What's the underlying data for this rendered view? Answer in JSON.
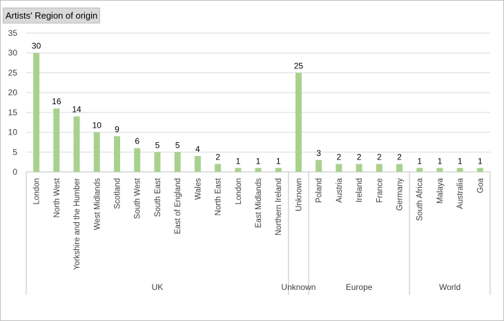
{
  "chart_data": {
    "type": "bar",
    "title": "Artists' Region of origin",
    "xlabel": "",
    "ylabel": "",
    "ylim": [
      0,
      35
    ],
    "yticks": [
      0,
      5,
      10,
      15,
      20,
      25,
      30,
      35
    ],
    "grid": true,
    "legend": "none",
    "color": "#a9d18e",
    "categories": [
      "London",
      "North West",
      "Yorkshire and the Humber",
      "West Midlands",
      "Scotland",
      "South West",
      "South East",
      "East of England",
      "Wales",
      "North East",
      "London",
      "East Midlands",
      "Northern Ireland",
      "Unknown",
      "Poland",
      "Austria",
      "Ireland",
      "France",
      "Germany",
      "South Africa",
      "Malaya",
      "Australia",
      "Goa"
    ],
    "values": [
      30,
      16,
      14,
      10,
      9,
      6,
      5,
      5,
      4,
      2,
      1,
      1,
      1,
      25,
      3,
      2,
      2,
      2,
      2,
      1,
      1,
      1,
      1
    ],
    "groups": [
      {
        "name": "UK",
        "count": 13
      },
      {
        "name": "Unknown",
        "count": 1
      },
      {
        "name": "Europe",
        "count": 5
      },
      {
        "name": "World",
        "count": 4
      }
    ]
  }
}
